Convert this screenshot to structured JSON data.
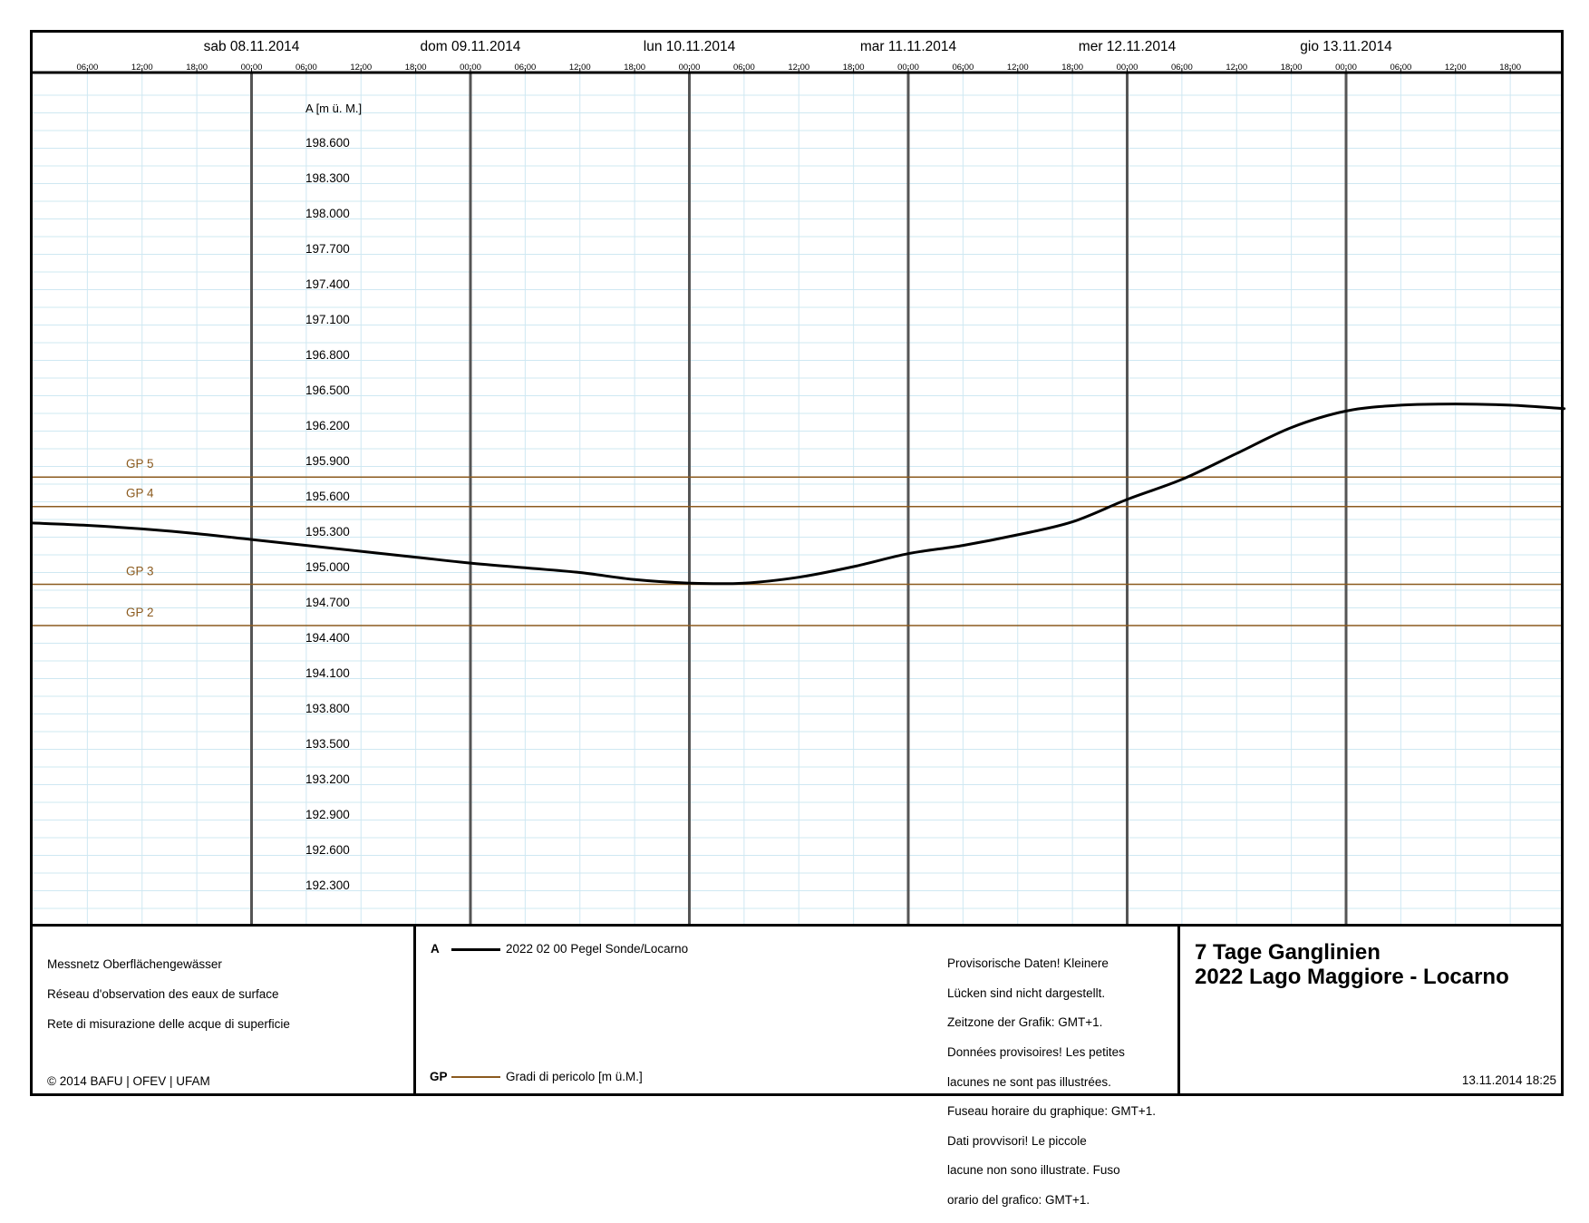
{
  "header": {
    "days": [
      "sab 08.11.2014",
      "dom 09.11.2014",
      "lun 10.11.2014",
      "mar 11.11.2014",
      "mer 12.11.2014",
      "gio 13.11.2014"
    ],
    "hour_ticks": [
      "06:00",
      "12:00",
      "18:00",
      "00:00",
      "06:00",
      "12:00",
      "18:00",
      "00:00",
      "06:00",
      "12:00",
      "18:00",
      "00:00",
      "06:00",
      "12:00",
      "18:00",
      "00:00",
      "06:00",
      "12:00",
      "18:00",
      "00:00",
      "06:00",
      "12:00",
      "18:00",
      "00:00",
      "06:00",
      "12:00",
      "18:00"
    ]
  },
  "chart_data": {
    "type": "line",
    "ylabel": "A [m ü. M.]",
    "y_ticks": [
      "198.600",
      "198.300",
      "198.000",
      "197.700",
      "197.400",
      "197.100",
      "196.800",
      "196.500",
      "196.200",
      "195.900",
      "195.600",
      "195.300",
      "195.000",
      "194.700",
      "194.400",
      "194.100",
      "193.800",
      "193.500",
      "193.200",
      "192.900",
      "192.600",
      "192.300"
    ],
    "x_unit": "hours from 07.11.2014 00:00",
    "xlim": [
      0,
      168
    ],
    "series": [
      {
        "name": "2022 02 00 Pegel Sonde/Locarno",
        "color": "#000000",
        "x": [
          0,
          6,
          12,
          18,
          24,
          30,
          36,
          42,
          48,
          54,
          60,
          66,
          72,
          78,
          84,
          90,
          96,
          102,
          108,
          114,
          120,
          126,
          132,
          138,
          144,
          150,
          156,
          162,
          168
        ],
        "y": [
          195.37,
          195.35,
          195.32,
          195.28,
          195.23,
          195.18,
          195.13,
          195.08,
          195.03,
          194.99,
          194.95,
          194.89,
          194.86,
          194.86,
          194.91,
          195.0,
          195.11,
          195.18,
          195.27,
          195.38,
          195.57,
          195.74,
          195.96,
          196.18,
          196.32,
          196.37,
          196.38,
          196.37,
          196.34
        ]
      }
    ],
    "danger_levels": [
      {
        "label": "GP 5",
        "value": 195.76,
        "color": "#8B5A1E"
      },
      {
        "label": "GP 4",
        "value": 195.51,
        "color": "#8B5A1E"
      },
      {
        "label": "GP 3",
        "value": 194.85,
        "color": "#8B5A1E"
      },
      {
        "label": "GP 2",
        "value": 194.5,
        "color": "#8B5A1E"
      }
    ]
  },
  "footer": {
    "network": [
      "Messnetz Oberflächengewässer",
      "Réseau d'observation des eaux de surface",
      "Rete di misurazione delle acque di superficie"
    ],
    "copyright": "© 2014 BAFU | OFEV | UFAM",
    "legend_a_symbol": "A",
    "legend_a_label": "2022 02 00 Pegel Sonde/Locarno",
    "legend_gp_symbol": "GP",
    "legend_gp_label": "Gradi di pericolo [m ü.M.]",
    "note": [
      "Provisorische Daten! Kleinere",
      "Lücken sind nicht dargestellt.",
      "Zeitzone der Grafik: GMT+1.",
      "Données provisoires! Les petites",
      "lacunes ne sont pas illustrées.",
      "Fuseau horaire du graphique: GMT+1.",
      "Dati provvisori! Le piccole",
      "lacune non sono illustrate. Fuso",
      "orario del grafico: GMT+1."
    ],
    "title_line1": "7 Tage Ganglinien",
    "title_line2": "2022 Lago Maggiore - Locarno",
    "timestamp": "13.11.2014 18:25"
  },
  "colors": {
    "grid": "#cfe8f2",
    "day_line": "#555555",
    "danger": "#8B5A1E",
    "series": "#000000"
  }
}
